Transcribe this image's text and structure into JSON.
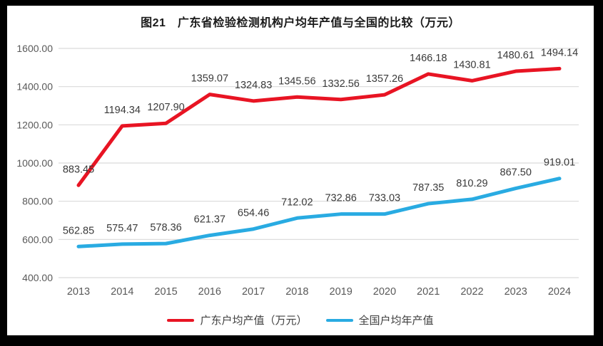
{
  "chart_data": {
    "type": "line",
    "title": "图21　广东省检验检测机构户均年产值与全国的比较（万元）",
    "categories": [
      "2013",
      "2014",
      "2015",
      "2016",
      "2017",
      "2018",
      "2019",
      "2020",
      "2021",
      "2022",
      "2023",
      "2024"
    ],
    "series": [
      {
        "name": "广东户均产值（万元）",
        "color": "#e81423",
        "values": [
          883.45,
          1194.34,
          1207.9,
          1359.07,
          1324.83,
          1345.56,
          1332.56,
          1357.26,
          1466.18,
          1430.81,
          1480.61,
          1494.14
        ]
      },
      {
        "name": "全国户均年产值",
        "color": "#29abe2",
        "values": [
          562.85,
          575.47,
          578.36,
          621.37,
          654.46,
          712.02,
          732.86,
          733.03,
          787.35,
          810.29,
          867.5,
          919.01
        ]
      }
    ],
    "ylim": [
      400,
      1600
    ],
    "ytick_step": 200,
    "yticks": [
      "1600.00",
      "1400.00",
      "1200.00",
      "1000.00",
      "800.00",
      "600.00",
      "400.00"
    ],
    "grid": "horizontal-only",
    "legend_position": "bottom",
    "colors": {
      "gridline": "#d9d9d9",
      "tick_label": "#595959",
      "data_label": "#3a3a3a",
      "panel_background": "#ffffff",
      "frame_background": "#000000"
    }
  }
}
